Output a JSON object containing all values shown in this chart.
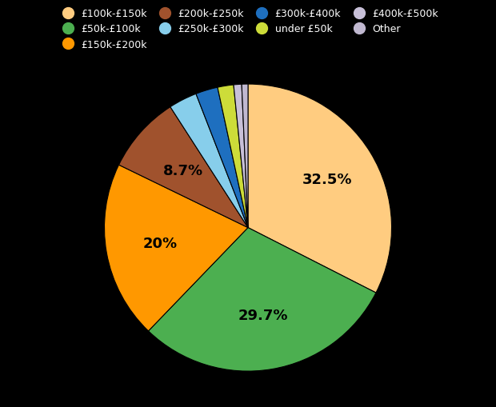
{
  "labels": [
    "£100k-£150k",
    "£50k-£100k",
    "£150k-£200k",
    "£200k-£250k",
    "£250k-£300k",
    "£300k-£400k",
    "under £50k",
    "£400k-£500k",
    "Other"
  ],
  "values": [
    32.5,
    29.7,
    20.0,
    8.7,
    3.2,
    2.5,
    1.8,
    0.9,
    0.7
  ],
  "colors": [
    "#FFCC80",
    "#4CAF50",
    "#FF9800",
    "#A0522D",
    "#87CEEB",
    "#1E6FBF",
    "#CDDC39",
    "#C8C0D8",
    "#C0B8D0"
  ],
  "autopct_show_indices": [
    0,
    1,
    2,
    3
  ],
  "autopct_values": [
    "32.5%",
    "29.7%",
    "20%",
    "8.7%"
  ],
  "autopct_radii": [
    0.65,
    0.62,
    0.62,
    0.6
  ],
  "background_color": "#000000",
  "label_color": "#000000",
  "legend_label_color": "#ffffff",
  "legend_ncol": 4,
  "legend_fontsize": 9,
  "label_fontsize": 13
}
